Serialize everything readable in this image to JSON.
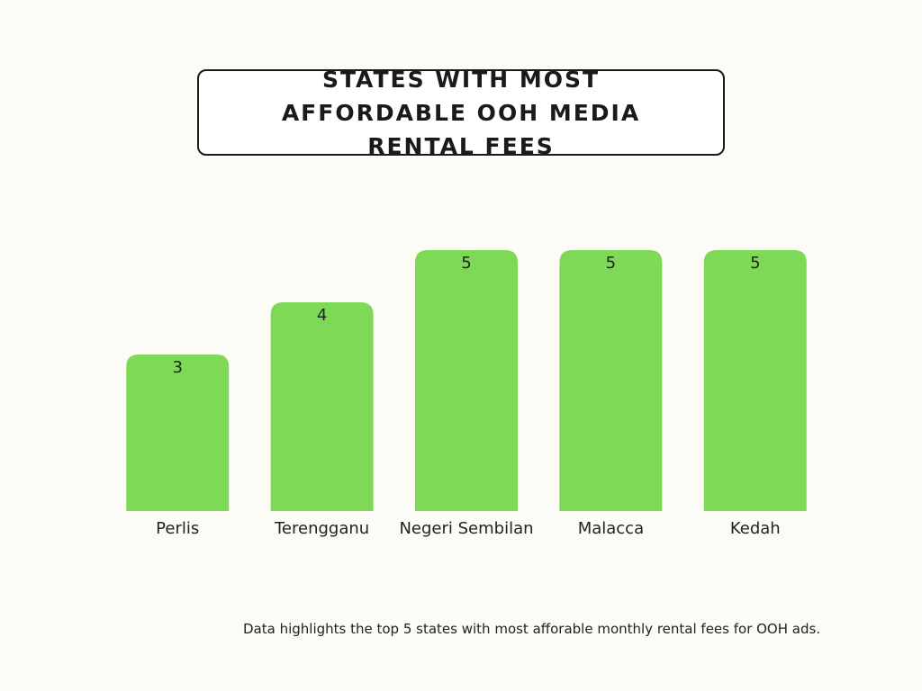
{
  "chart_data": {
    "type": "bar",
    "title": "STATES WITH MOST AFFORDABLE OOH MEDIA RENTAL FEES",
    "categories": [
      "Perlis",
      "Terengganu",
      "Negeri Sembilan",
      "Malacca",
      "Kedah"
    ],
    "values": [
      3,
      4,
      5,
      5,
      5
    ],
    "color": "#7ed957",
    "note": "Data highlights the top 5 states with most afforable monthly rental fees for OOH ads."
  }
}
